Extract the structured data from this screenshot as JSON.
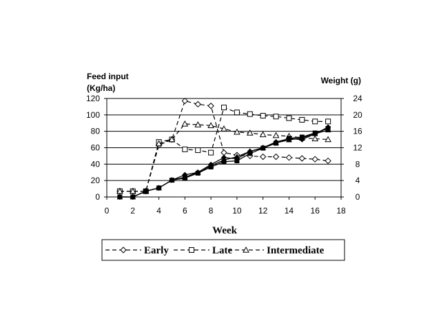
{
  "chart_data": {
    "type": "line",
    "xlabel": "Week",
    "ylabel_left": [
      "Feed input",
      "(Kg/ha)"
    ],
    "ylabel_right": "Weight (g)",
    "xlim": [
      0,
      18
    ],
    "xticks": [
      0,
      2,
      4,
      6,
      8,
      10,
      12,
      14,
      16,
      18
    ],
    "ylim_left": [
      0,
      120
    ],
    "yticks_left": [
      0,
      20,
      40,
      60,
      80,
      100,
      120
    ],
    "ylim_right": [
      0,
      24
    ],
    "yticks_right": [
      0,
      4,
      8,
      12,
      16,
      20,
      24
    ],
    "grid": "horizontal",
    "legend_position": "bottom",
    "series": [
      {
        "name": "Early",
        "axis": "left",
        "marker": "diamond",
        "line": "dashed",
        "x": [
          1,
          2,
          3,
          4,
          5,
          6,
          7,
          8,
          9,
          10,
          11,
          12,
          13,
          14,
          15,
          16,
          17
        ],
        "y": [
          7,
          7,
          7,
          63,
          70,
          117,
          113,
          111,
          54,
          51,
          50,
          49,
          49,
          48,
          47,
          46,
          44
        ]
      },
      {
        "name": "Late",
        "axis": "left",
        "marker": "square",
        "line": "dashed",
        "x": [
          1,
          2,
          3,
          4,
          5,
          6,
          7,
          8,
          9,
          10,
          11,
          12,
          13,
          14,
          15,
          16,
          17
        ],
        "y": [
          7,
          7,
          7,
          67,
          70,
          58,
          57,
          54,
          109,
          103,
          101,
          99,
          98,
          96,
          94,
          92,
          92
        ]
      },
      {
        "name": "Intermediate",
        "axis": "left",
        "marker": "triangle",
        "line": "dashed",
        "x": [
          1,
          2,
          3,
          4,
          5,
          6,
          7,
          8,
          9,
          10,
          11,
          12,
          13,
          14,
          15,
          16,
          17
        ],
        "y": [
          7,
          7,
          7,
          65,
          70,
          89,
          88,
          87,
          83,
          79,
          78,
          76,
          75,
          74,
          72,
          71,
          70
        ]
      },
      {
        "axis": "right",
        "marker": "diamond-filled",
        "line": "solid",
        "x": [
          1,
          2,
          3,
          4,
          5,
          6,
          7,
          8,
          9,
          10,
          11,
          12,
          13,
          14,
          15,
          16,
          17
        ],
        "y": [
          0,
          0,
          1.4,
          2.2,
          4.1,
          5.4,
          6.0,
          7.9,
          9.6,
          9.3,
          11.1,
          12.0,
          13.4,
          14.2,
          14.0,
          15.4,
          17.0
        ]
      },
      {
        "axis": "right",
        "marker": "square-filled",
        "line": "solid",
        "x": [
          1,
          2,
          3,
          4,
          5,
          6,
          7,
          8,
          9,
          10,
          11,
          12,
          13,
          14,
          15,
          16,
          17
        ],
        "y": [
          0,
          0,
          1.4,
          2.2,
          4.1,
          4.6,
          5.8,
          7.3,
          8.6,
          8.8,
          10.6,
          11.9,
          13.1,
          14.3,
          14.6,
          15.6,
          16.7
        ]
      },
      {
        "axis": "right",
        "marker": "triangle-filled",
        "line": "solid",
        "x": [
          1,
          2,
          3,
          4,
          5,
          6,
          7,
          8,
          9,
          10,
          11,
          12,
          13,
          14,
          15,
          16,
          17
        ],
        "y": [
          0,
          0,
          1.4,
          2.2,
          4.1,
          4.8,
          6.0,
          7.6,
          9.0,
          9.8,
          11.1,
          12.0,
          13.2,
          13.9,
          14.4,
          15.4,
          16.3
        ]
      }
    ]
  }
}
